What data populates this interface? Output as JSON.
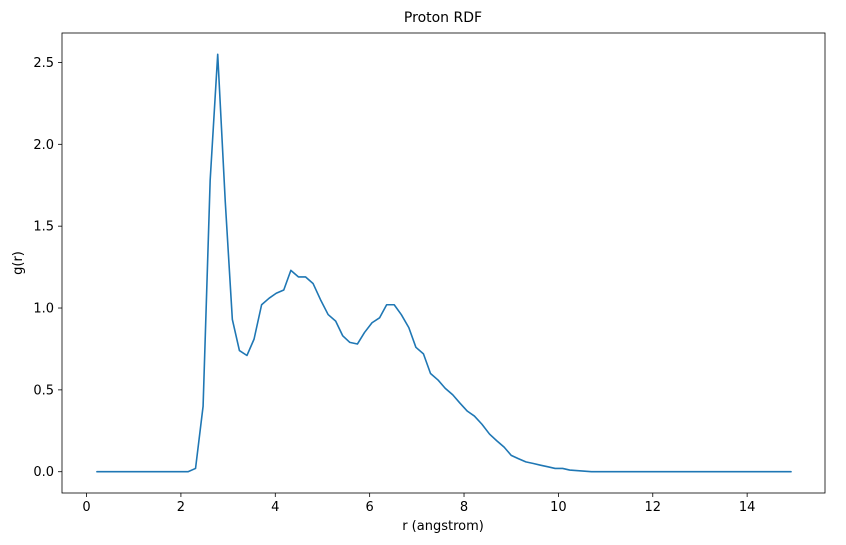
{
  "chart_data": {
    "type": "line",
    "title": "Proton RDF",
    "xlabel": "r (angstrom)",
    "ylabel": "g(r)",
    "xlim": [
      -0.52,
      15.65
    ],
    "ylim": [
      -0.13,
      2.68
    ],
    "xticks": [
      0,
      2,
      4,
      6,
      8,
      10,
      12,
      14
    ],
    "xtick_labels": [
      "0",
      "2",
      "4",
      "6",
      "8",
      "10",
      "12",
      "14"
    ],
    "yticks": [
      0.0,
      0.5,
      1.0,
      1.5,
      2.0,
      2.5
    ],
    "ytick_labels": [
      "0.0",
      "0.5",
      "1.0",
      "1.5",
      "2.0",
      "2.5"
    ],
    "grid": false,
    "line_color": "#1f77b4",
    "series": [
      {
        "x": [
          0.22,
          2.15,
          2.31,
          2.47,
          2.62,
          2.78,
          2.94,
          3.09,
          3.24,
          3.4,
          3.55,
          3.71,
          3.87,
          4.02,
          4.18,
          4.33,
          4.49,
          4.64,
          4.8,
          4.96,
          5.12,
          5.28,
          5.43,
          5.58,
          5.74,
          5.89,
          6.05,
          6.21,
          6.36,
          6.52,
          6.67,
          6.83,
          6.98,
          7.14,
          7.29,
          7.45,
          7.6,
          7.76,
          7.91,
          8.07,
          8.22,
          8.38,
          8.54,
          8.69,
          8.85,
          9.0,
          9.15,
          9.31,
          9.47,
          9.62,
          9.78,
          9.93,
          10.09,
          10.24,
          10.7,
          14.93
        ],
        "y": [
          0.0,
          0.0,
          0.02,
          0.4,
          1.78,
          2.55,
          1.65,
          0.93,
          0.74,
          0.71,
          0.81,
          1.02,
          1.06,
          1.09,
          1.11,
          1.23,
          1.19,
          1.19,
          1.15,
          1.05,
          0.96,
          0.92,
          0.83,
          0.79,
          0.78,
          0.85,
          0.91,
          0.94,
          1.02,
          1.02,
          0.96,
          0.88,
          0.76,
          0.72,
          0.6,
          0.56,
          0.51,
          0.47,
          0.42,
          0.37,
          0.34,
          0.29,
          0.23,
          0.19,
          0.15,
          0.1,
          0.08,
          0.06,
          0.05,
          0.04,
          0.03,
          0.02,
          0.02,
          0.01,
          0.0,
          0.0
        ]
      }
    ]
  }
}
